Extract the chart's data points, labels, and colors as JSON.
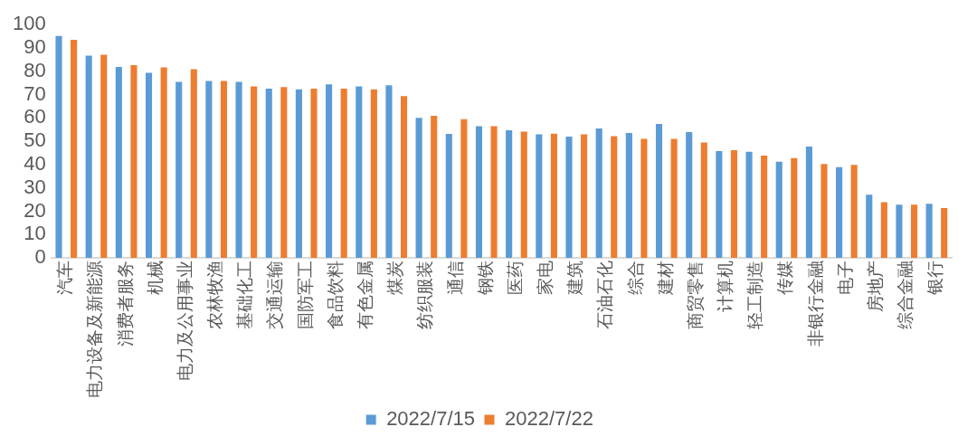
{
  "chart_data": {
    "type": "bar",
    "categories": [
      "汽车",
      "电力设备及新能源",
      "消费者服务",
      "机械",
      "电力及公用事业",
      "农林牧渔",
      "基础化工",
      "交通运输",
      "国防军工",
      "食品饮料",
      "有色金属",
      "煤炭",
      "纺织服装",
      "通信",
      "钢铁",
      "医药",
      "家电",
      "建筑",
      "石油石化",
      "综合",
      "建材",
      "商贸零售",
      "计算机",
      "轻工制造",
      "传媒",
      "非银行金融",
      "电子",
      "房地产",
      "综合金融",
      "银行"
    ],
    "series": [
      {
        "name": "2022/7/15",
        "color": "#5b9bd5",
        "values": [
          95.5,
          87.1,
          82.2,
          79.7,
          75.8,
          76.2,
          75.8,
          72.9,
          72.6,
          74.8,
          73.9,
          74.4,
          60.4,
          53.5,
          56.8,
          55.1,
          53.3,
          52.4,
          55.9,
          53.9,
          57.8,
          54.3,
          46.2,
          45.9,
          41.6,
          48.1,
          39.3,
          27.4,
          23.2,
          23.6
        ]
      },
      {
        "name": "2022/7/22",
        "color": "#ed7d31",
        "values": [
          93.9,
          87.5,
          83.0,
          82.0,
          81.3,
          76.2,
          73.9,
          73.6,
          72.9,
          72.9,
          72.6,
          69.7,
          61.3,
          59.8,
          56.8,
          54.5,
          53.6,
          53.3,
          52.6,
          51.4,
          51.4,
          49.8,
          46.5,
          44.2,
          43.2,
          40.6,
          40.2,
          24.2,
          23.2,
          21.7
        ]
      }
    ],
    "ylim": [
      0,
      100
    ],
    "yticks": [
      0,
      10,
      20,
      30,
      40,
      50,
      60,
      70,
      80,
      90,
      100
    ],
    "grid": false,
    "legend": "bottom"
  }
}
